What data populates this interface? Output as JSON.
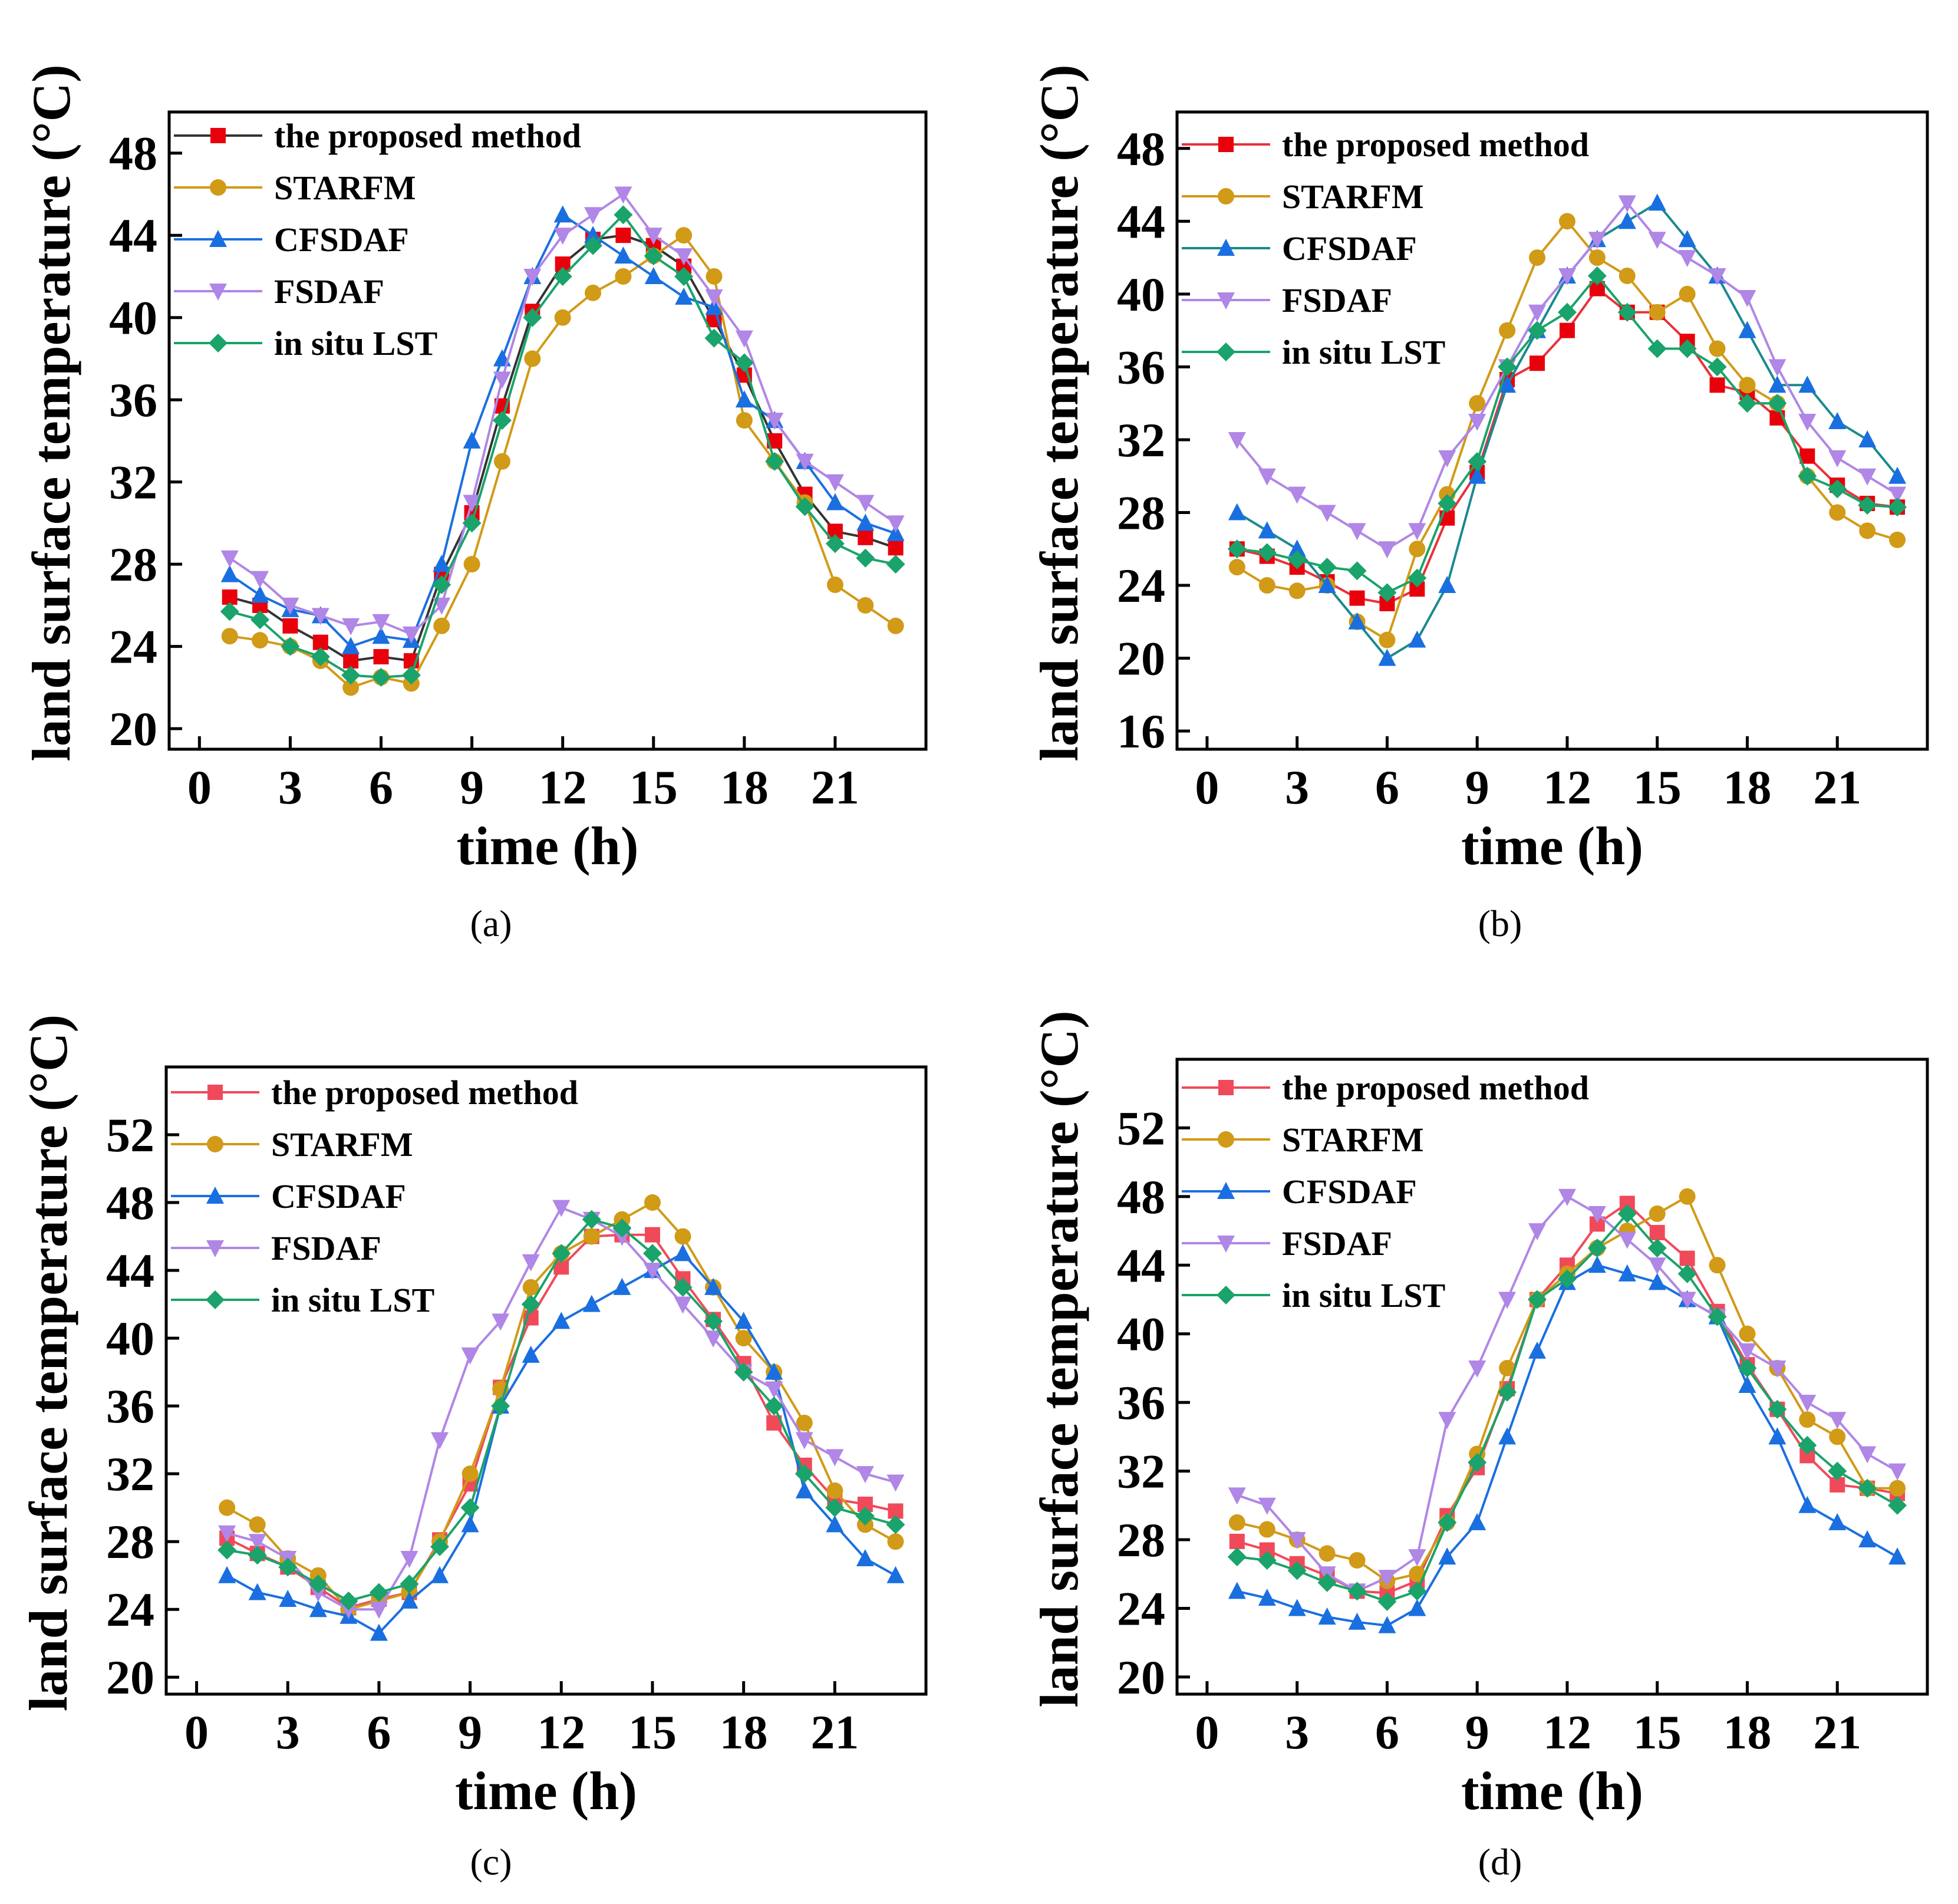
{
  "figure": {
    "caption_prefix": "(",
    "caption_suffix": ")"
  },
  "colors": {
    "the proposed method": "#e8313a",
    "STARFM": "#d19a17",
    "CFSDAF": "#1a6fe0",
    "FSDAF": "#b086e6",
    "in situ LST": "#1aa36a"
  },
  "chart_data": [
    {
      "type": "line",
      "panel": "a",
      "xlabel": "time (h)",
      "ylabel": "land surface temperature (°C)",
      "xlim": [
        -1,
        24
      ],
      "ylim": [
        19,
        50
      ],
      "xticks": [
        0,
        3,
        6,
        9,
        12,
        15,
        18,
        21
      ],
      "yticks": [
        20,
        24,
        28,
        32,
        36,
        40,
        44,
        48
      ],
      "x": [
        1,
        2,
        3,
        4,
        5,
        6,
        7,
        8,
        9,
        10,
        11,
        12,
        13,
        14,
        15,
        16,
        17,
        18,
        19,
        20,
        21,
        22,
        23
      ],
      "series": [
        {
          "name": "the proposed method",
          "marker": "square",
          "line_color": "#333333",
          "marker_color": "#e8000b",
          "values": [
            26.4,
            26.0,
            25.0,
            24.2,
            23.3,
            23.5,
            23.3,
            27.5,
            30.5,
            35.7,
            40.3,
            42.6,
            43.8,
            44.0,
            43.5,
            42.5,
            39.9,
            37.2,
            34.0,
            31.4,
            29.6,
            29.3,
            28.8
          ]
        },
        {
          "name": "STARFM",
          "marker": "circle",
          "line_color": "#d19a17",
          "marker_color": "#d19a17",
          "values": [
            24.5,
            24.3,
            24.0,
            23.3,
            22.0,
            22.5,
            22.2,
            25.0,
            28.0,
            33.0,
            38.0,
            40.0,
            41.2,
            42.0,
            43.0,
            44.0,
            42.0,
            35.0,
            33.0,
            31.0,
            27.0,
            26.0,
            25.0
          ]
        },
        {
          "name": "CFSDAF",
          "marker": "triangle-up",
          "line_color": "#1a6fe0",
          "marker_color": "#1a6fe0",
          "values": [
            27.5,
            26.5,
            25.8,
            25.5,
            24.0,
            24.5,
            24.3,
            28.0,
            34.0,
            38.0,
            42.0,
            45.0,
            44.0,
            43.0,
            42.0,
            41.0,
            40.5,
            36.0,
            35.0,
            33.0,
            31.0,
            30.0,
            29.5
          ]
        },
        {
          "name": "FSDAF",
          "marker": "triangle-down",
          "line_color": "#b086e6",
          "marker_color": "#b086e6",
          "values": [
            28.3,
            27.3,
            26.0,
            25.5,
            25.0,
            25.2,
            24.6,
            26.0,
            31.0,
            37.0,
            42.0,
            44.0,
            45.0,
            46.0,
            44.0,
            43.0,
            41.0,
            39.0,
            35.0,
            33.0,
            32.0,
            31.0,
            30.0
          ]
        },
        {
          "name": "in situ LST",
          "marker": "diamond",
          "line_color": "#1aa36a",
          "marker_color": "#1aa36a",
          "values": [
            25.7,
            25.3,
            24.0,
            23.5,
            22.6,
            22.5,
            22.6,
            27.0,
            30.0,
            35.0,
            40.0,
            42.0,
            43.5,
            45.0,
            43.0,
            42.0,
            39.0,
            37.8,
            33.0,
            30.8,
            29.0,
            28.3,
            28.0
          ]
        }
      ]
    },
    {
      "type": "line",
      "panel": "b",
      "xlabel": "time (h)",
      "ylabel": "land surface temperature (°C)",
      "xlim": [
        -1,
        24
      ],
      "ylim": [
        15,
        50
      ],
      "xticks": [
        0,
        3,
        6,
        9,
        12,
        15,
        18,
        21
      ],
      "yticks": [
        16,
        20,
        24,
        28,
        32,
        36,
        40,
        44,
        48
      ],
      "x": [
        1,
        2,
        3,
        4,
        5,
        6,
        7,
        8,
        9,
        10,
        11,
        12,
        13,
        14,
        15,
        16,
        17,
        18,
        19,
        20,
        21,
        22,
        23
      ],
      "series": [
        {
          "name": "the proposed method",
          "marker": "square",
          "line_color": "#e8313a",
          "marker_color": "#e8000b",
          "values": [
            26.0,
            25.6,
            25.0,
            24.2,
            23.3,
            23.0,
            23.8,
            27.7,
            30.2,
            35.3,
            36.2,
            38.0,
            40.3,
            39.0,
            39.0,
            37.4,
            35.0,
            34.6,
            33.2,
            31.1,
            29.5,
            28.5,
            28.3
          ]
        },
        {
          "name": "STARFM",
          "marker": "circle",
          "line_color": "#d19a17",
          "marker_color": "#d19a17",
          "values": [
            25.0,
            24.0,
            23.7,
            24.0,
            22.0,
            21.0,
            26.0,
            29.0,
            34.0,
            38.0,
            42.0,
            44.0,
            42.0,
            41.0,
            39.0,
            40.0,
            37.0,
            35.0,
            34.0,
            30.0,
            28.0,
            27.0,
            26.5
          ]
        },
        {
          "name": "CFSDAF",
          "marker": "triangle-up",
          "line_color": "#1a8a8f",
          "marker_color": "#1a6fe0",
          "values": [
            28.0,
            27.0,
            26.0,
            24.0,
            22.0,
            20.0,
            21.0,
            24.0,
            30.0,
            35.0,
            38.0,
            41.0,
            43.0,
            44.0,
            45.0,
            43.0,
            41.0,
            38.0,
            35.0,
            35.0,
            33.0,
            32.0,
            30.0
          ]
        },
        {
          "name": "FSDAF",
          "marker": "triangle-down",
          "line_color": "#b086e6",
          "marker_color": "#b086e6",
          "values": [
            32.0,
            30.0,
            29.0,
            28.0,
            27.0,
            26.0,
            27.0,
            31.0,
            33.0,
            36.0,
            39.0,
            41.0,
            43.0,
            45.0,
            43.0,
            42.0,
            41.0,
            39.8,
            36.0,
            33.0,
            31.0,
            30.0,
            29.0
          ]
        },
        {
          "name": "in situ LST",
          "marker": "diamond",
          "line_color": "#1aa36a",
          "marker_color": "#1aa36a",
          "values": [
            26.0,
            25.8,
            25.4,
            25.0,
            24.8,
            23.6,
            24.4,
            28.5,
            30.8,
            36.0,
            38.0,
            39.0,
            41.0,
            39.0,
            37.0,
            37.0,
            36.0,
            34.0,
            34.0,
            30.0,
            29.3,
            28.4,
            28.3
          ]
        }
      ]
    },
    {
      "type": "line",
      "panel": "c",
      "xlabel": "time (h)",
      "ylabel": "land surface temperature (°C)",
      "xlim": [
        -1,
        24
      ],
      "ylim": [
        19,
        56
      ],
      "xticks": [
        0,
        3,
        6,
        9,
        12,
        15,
        18,
        21
      ],
      "yticks": [
        20,
        24,
        28,
        32,
        36,
        40,
        44,
        48,
        52
      ],
      "x": [
        1,
        2,
        3,
        4,
        5,
        6,
        7,
        8,
        9,
        10,
        11,
        12,
        13,
        14,
        15,
        16,
        17,
        18,
        19,
        20,
        21,
        22,
        23
      ],
      "series": [
        {
          "name": "the proposed method",
          "marker": "square",
          "line_color": "#f04a5a",
          "marker_color": "#f04a5a",
          "values": [
            28.2,
            27.3,
            26.5,
            25.3,
            24.1,
            24.6,
            25.0,
            28.1,
            31.4,
            37.1,
            41.2,
            44.2,
            46.0,
            46.1,
            46.1,
            43.5,
            41.1,
            38.5,
            35.0,
            32.5,
            30.5,
            30.2,
            29.8
          ]
        },
        {
          "name": "STARFM",
          "marker": "circle",
          "line_color": "#d19a17",
          "marker_color": "#d19a17",
          "values": [
            30.0,
            29.0,
            27.0,
            26.0,
            24.0,
            24.5,
            25.0,
            28.0,
            32.0,
            37.0,
            43.0,
            45.0,
            46.0,
            47.0,
            48.0,
            46.0,
            43.0,
            40.0,
            38.0,
            35.0,
            31.0,
            29.0,
            28.0
          ]
        },
        {
          "name": "CFSDAF",
          "marker": "triangle-up",
          "line_color": "#1a6fe0",
          "marker_color": "#1a6fe0",
          "values": [
            26.0,
            25.0,
            24.6,
            24.0,
            23.6,
            22.6,
            24.5,
            26.0,
            29.0,
            36.0,
            39.0,
            41.0,
            42.0,
            43.0,
            44.0,
            45.0,
            43.0,
            41.0,
            38.0,
            31.0,
            29.0,
            27.0,
            26.0
          ]
        },
        {
          "name": "FSDAF",
          "marker": "triangle-down",
          "line_color": "#b086e6",
          "marker_color": "#b086e6",
          "values": [
            28.5,
            28.0,
            27.0,
            25.0,
            24.0,
            24.0,
            27.0,
            34.0,
            39.0,
            41.0,
            44.5,
            47.7,
            47.0,
            46.0,
            44.0,
            42.0,
            40.0,
            38.0,
            37.0,
            34.0,
            33.0,
            32.0,
            31.5
          ]
        },
        {
          "name": "in situ LST",
          "marker": "diamond",
          "line_color": "#1aa36a",
          "marker_color": "#1aa36a",
          "values": [
            27.5,
            27.2,
            26.5,
            25.5,
            24.5,
            25.0,
            25.5,
            27.7,
            30.0,
            36.0,
            42.0,
            45.0,
            47.0,
            46.5,
            45.0,
            43.0,
            41.0,
            38.0,
            36.0,
            32.0,
            30.0,
            29.5,
            29.0
          ]
        }
      ]
    },
    {
      "type": "line",
      "panel": "d",
      "xlabel": "time (h)",
      "ylabel": "land surface temperature (°C)",
      "xlim": [
        -1,
        24
      ],
      "ylim": [
        19,
        56
      ],
      "xticks": [
        0,
        3,
        6,
        9,
        12,
        15,
        18,
        21
      ],
      "yticks": [
        20,
        24,
        28,
        32,
        36,
        40,
        44,
        48,
        52
      ],
      "x": [
        1,
        2,
        3,
        4,
        5,
        6,
        7,
        8,
        9,
        10,
        11,
        12,
        13,
        14,
        15,
        16,
        17,
        18,
        19,
        20,
        21,
        22,
        23
      ],
      "series": [
        {
          "name": "the proposed method",
          "marker": "square",
          "line_color": "#f04a5a",
          "marker_color": "#f04a5a",
          "values": [
            27.9,
            27.4,
            26.6,
            25.9,
            25.0,
            24.9,
            25.6,
            29.4,
            32.2,
            36.8,
            42.0,
            44.0,
            46.4,
            47.6,
            45.9,
            44.4,
            41.3,
            38.2,
            35.6,
            32.9,
            31.2,
            31.0,
            30.7
          ]
        },
        {
          "name": "STARFM",
          "marker": "circle",
          "line_color": "#d19a17",
          "marker_color": "#d19a17",
          "values": [
            29.0,
            28.6,
            28.0,
            27.2,
            26.8,
            25.6,
            26.0,
            29.0,
            33.0,
            38.0,
            42.0,
            43.5,
            45.0,
            46.0,
            47.0,
            48.0,
            44.0,
            40.0,
            38.0,
            35.0,
            34.0,
            31.0,
            31.0
          ]
        },
        {
          "name": "CFSDAF",
          "marker": "triangle-up",
          "line_color": "#1a6fe0",
          "marker_color": "#1a6fe0",
          "values": [
            25.0,
            24.6,
            24.0,
            23.5,
            23.2,
            23.0,
            24.0,
            27.0,
            29.0,
            34.0,
            39.0,
            43.0,
            44.0,
            43.5,
            43.0,
            42.0,
            41.0,
            37.0,
            34.0,
            30.0,
            29.0,
            28.0,
            27.0
          ]
        },
        {
          "name": "FSDAF",
          "marker": "triangle-down",
          "line_color": "#b086e6",
          "marker_color": "#b086e6",
          "values": [
            30.6,
            30.0,
            28.0,
            26.0,
            25.0,
            25.8,
            27.0,
            35.0,
            38.0,
            42.0,
            46.0,
            48.0,
            47.0,
            45.5,
            44.0,
            42.0,
            41.0,
            39.0,
            38.0,
            36.0,
            35.0,
            33.0,
            32.0
          ]
        },
        {
          "name": "in situ LST",
          "marker": "diamond",
          "line_color": "#1aa36a",
          "marker_color": "#1aa36a",
          "values": [
            27.0,
            26.8,
            26.2,
            25.5,
            25.0,
            24.4,
            25.0,
            29.0,
            32.5,
            36.6,
            42.0,
            43.2,
            45.0,
            47.0,
            45.0,
            43.5,
            41.0,
            38.0,
            35.6,
            33.5,
            32.0,
            31.0,
            30.0
          ]
        }
      ]
    }
  ]
}
